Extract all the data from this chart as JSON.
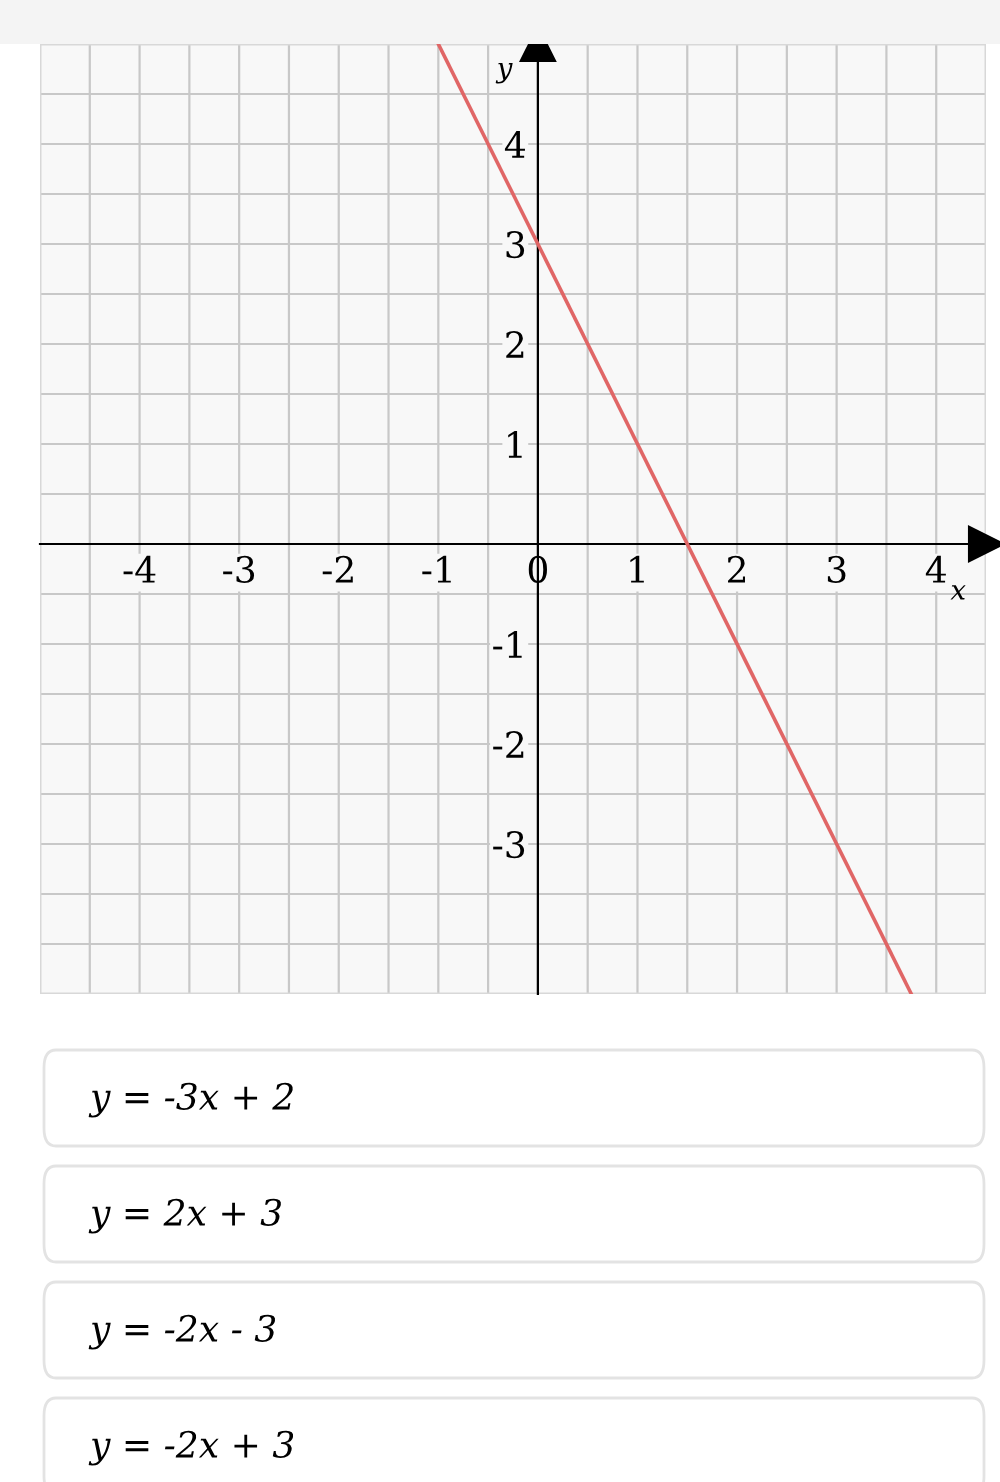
{
  "chart_data": {
    "type": "line",
    "xlabel": "x",
    "ylabel": "y",
    "xlim": [
      -5,
      4.5
    ],
    "ylim": [
      -4.5,
      5
    ],
    "xticks": [
      -4,
      -3,
      -2,
      -1,
      0,
      1,
      2,
      3,
      4
    ],
    "yticks": [
      -3,
      -2,
      -1,
      1,
      2,
      3,
      4
    ],
    "grid": true,
    "marker": "none",
    "line_style": "solid",
    "series": [
      {
        "color": "#e06666",
        "x": [
          -1,
          3.75
        ],
        "values": [
          5,
          -4.5
        ]
      }
    ],
    "annotations": [
      "y = -3x + 2",
      "y = 2x + 3",
      "y = -2x - 3",
      "y = -2x + 3"
    ]
  }
}
